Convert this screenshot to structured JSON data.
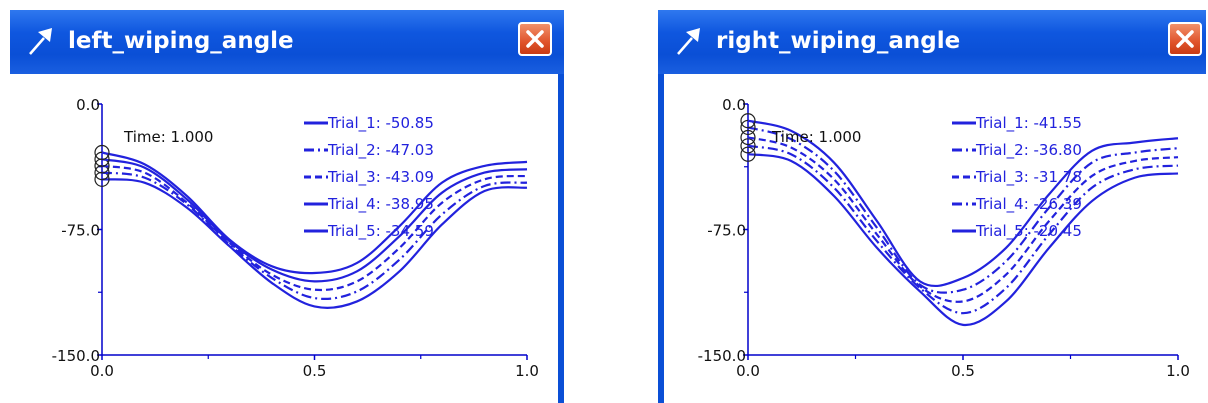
{
  "windows": [
    {
      "title": "left_wiping_angle",
      "chart_data": {
        "type": "line",
        "xlim": [
          0.0,
          1.0
        ],
        "ylim": [
          -150.0,
          0.0
        ],
        "x_ticks": [
          "0.0",
          "0.5",
          "1.0"
        ],
        "y_ticks": [
          "0.0",
          "-75.0",
          "-150.0"
        ],
        "time_label": "Time:  1.000",
        "x": [
          0,
          0.1,
          0.2,
          0.3,
          0.4,
          0.5,
          0.6,
          0.7,
          0.8,
          0.9,
          1.0
        ],
        "series": [
          {
            "name": "Trial_1",
            "readout": "Trial_1:  -50.85",
            "dash": "solid",
            "values": [
              -45,
              -47,
              -62,
              -85,
              -107,
              -121,
              -118,
              -100,
              -72,
              -52,
              -50
            ]
          },
          {
            "name": "Trial_2",
            "readout": "Trial_2:  -47.03",
            "dash": "dashdot",
            "values": [
              -41,
              -44,
              -60,
              -84,
              -104,
              -116,
              -112,
              -93,
              -66,
              -49,
              -47
            ]
          },
          {
            "name": "Trial_3",
            "readout": "Trial_3:  -43.09",
            "dash": "dashed",
            "values": [
              -37,
              -41,
              -59,
              -83,
              -102,
              -111,
              -106,
              -86,
              -59,
              -45,
              -43
            ]
          },
          {
            "name": "Trial_4",
            "readout": "Trial_4:  -38.95",
            "dash": "solid",
            "values": [
              -33,
              -38,
              -57,
              -82,
              -99,
              -106,
              -100,
              -79,
              -53,
              -41,
              -39
            ]
          },
          {
            "name": "Trial_5",
            "readout": "Trial_5:  -34.59",
            "dash": "solid",
            "values": [
              -29,
              -36,
              -55,
              -81,
              -97,
              -101,
              -95,
              -73,
              -47,
              -37,
              -34.6
            ]
          }
        ]
      }
    },
    {
      "title": "right_wiping_angle",
      "chart_data": {
        "type": "line",
        "xlim": [
          0.0,
          1.0
        ],
        "ylim": [
          -150.0,
          0.0
        ],
        "x_ticks": [
          "0.0",
          "0.5",
          "1.0"
        ],
        "y_ticks": [
          "0.0",
          "-75.0",
          "-150.0"
        ],
        "time_label": "Time:  1.000",
        "x": [
          0,
          0.1,
          0.2,
          0.3,
          0.4,
          0.5,
          0.6,
          0.7,
          0.8,
          0.9,
          1.0
        ],
        "series": [
          {
            "name": "Trial_1",
            "readout": "Trial_1:  -41.55",
            "dash": "solid",
            "values": [
              -30,
              -34,
              -55,
              -86,
              -112,
              -132,
              -118,
              -86,
              -58,
              -44,
              -41.5
            ]
          },
          {
            "name": "Trial_2",
            "readout": "Trial_2:  -36.80",
            "dash": "dashdot",
            "values": [
              -25,
              -30,
              -50,
              -82,
              -110,
              -125,
              -110,
              -78,
              -50,
              -39,
              -36.8
            ]
          },
          {
            "name": "Trial_3",
            "readout": "Trial_3:  -31.78",
            "dash": "dashed",
            "values": [
              -20,
              -26,
              -45,
              -78,
              -109,
              -118,
              -102,
              -70,
              -43,
              -34,
              -31.8
            ]
          },
          {
            "name": "Trial_4",
            "readout": "Trial_4:  -26.39",
            "dash": "dashdot",
            "values": [
              -14,
              -21,
              -40,
              -74,
              -108,
              -111,
              -94,
              -62,
              -35,
              -29,
              -26.4
            ]
          },
          {
            "name": "Trial_5",
            "readout": "Trial_5:  -20.45",
            "dash": "solid",
            "values": [
              -10,
              -16,
              -35,
              -70,
              -106,
              -104,
              -86,
              -54,
              -28,
              -23,
              -20.45
            ]
          }
        ]
      }
    }
  ],
  "colors": {
    "line": "#2222dd",
    "axis": "#0000cc",
    "marker": "#222222",
    "title_bar": "#0a4fd6"
  },
  "icons": {
    "title": "pin-icon",
    "close": "close-icon"
  }
}
